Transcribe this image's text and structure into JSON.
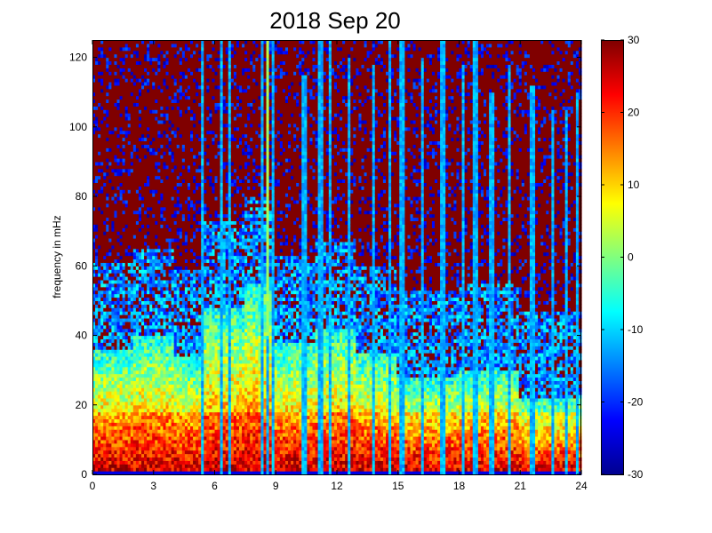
{
  "chart_data": {
    "type": "heatmap",
    "title": "2018 Sep 20",
    "xlabel": "",
    "ylabel": "frequency in mHz",
    "xlim": [
      0,
      24
    ],
    "ylim": [
      0,
      125
    ],
    "x_ticks": [
      0,
      3,
      6,
      9,
      12,
      15,
      18,
      21,
      24
    ],
    "y_ticks": [
      0,
      20,
      40,
      60,
      80,
      100,
      120
    ],
    "colorbar": {
      "colormap": "jet",
      "clim": [
        -30,
        30
      ],
      "ticks": [
        30,
        20,
        10,
        0,
        -10,
        -20,
        -30
      ]
    },
    "spectral_bands": [
      {
        "x_start": 0,
        "x_end": 2,
        "energy_top": 36
      },
      {
        "x_start": 2,
        "x_end": 4,
        "energy_top": 40
      },
      {
        "x_start": 4,
        "x_end": 5.5,
        "energy_top": 34
      },
      {
        "x_start": 5.5,
        "x_end": 7.5,
        "energy_top": 48
      },
      {
        "x_start": 7.5,
        "x_end": 9,
        "energy_top": 55
      },
      {
        "x_start": 9,
        "x_end": 11,
        "energy_top": 38
      },
      {
        "x_start": 11,
        "x_end": 13,
        "energy_top": 42
      },
      {
        "x_start": 13,
        "x_end": 15,
        "energy_top": 35
      },
      {
        "x_start": 15,
        "x_end": 18,
        "energy_top": 28
      },
      {
        "x_start": 18,
        "x_end": 21,
        "energy_top": 30
      },
      {
        "x_start": 21,
        "x_end": 24,
        "energy_top": 22
      }
    ],
    "vertical_streaks": [
      {
        "x": 5.4,
        "top": 125
      },
      {
        "x": 6.3,
        "top": 125
      },
      {
        "x": 6.7,
        "top": 125
      },
      {
        "x": 8.3,
        "top": 125
      },
      {
        "x": 8.6,
        "top": 125
      },
      {
        "x": 8.9,
        "top": 125
      },
      {
        "x": 10.4,
        "top": 115
      },
      {
        "x": 11.2,
        "top": 125
      },
      {
        "x": 11.7,
        "top": 125
      },
      {
        "x": 12.6,
        "top": 120
      },
      {
        "x": 13.8,
        "top": 118
      },
      {
        "x": 14.6,
        "top": 125
      },
      {
        "x": 15.2,
        "top": 125
      },
      {
        "x": 16.2,
        "top": 120
      },
      {
        "x": 17.2,
        "top": 125
      },
      {
        "x": 18.2,
        "top": 118
      },
      {
        "x": 18.8,
        "top": 125
      },
      {
        "x": 19.6,
        "top": 110
      },
      {
        "x": 20.5,
        "top": 118
      },
      {
        "x": 21.6,
        "top": 112
      },
      {
        "x": 22.6,
        "top": 105
      },
      {
        "x": 23.3,
        "top": 105
      },
      {
        "x": 23.8,
        "top": 110
      }
    ]
  }
}
